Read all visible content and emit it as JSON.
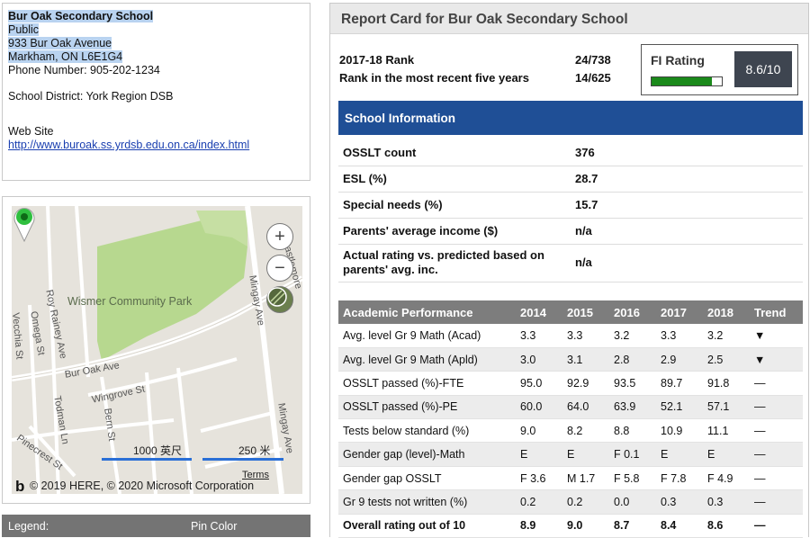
{
  "school": {
    "name": "Bur Oak Secondary School",
    "type": "Public",
    "street": "933 Bur Oak Avenue",
    "city_line": "Markham, ON L6E1G4",
    "phone_line": "Phone Number: 905-202-1234",
    "district_line": "School District: York Region DSB",
    "website_label": "Web Site",
    "website_url": "http://www.buroak.ss.yrdsb.edu.on.ca/index.html"
  },
  "map": {
    "park_label": "Wismer Community Park",
    "streets": [
      "Bur Oak Ave",
      "Wingrove St",
      "Roy Rainey Ave",
      "Omega St",
      "Vecchia St",
      "Todman Ln",
      "Bern St",
      "Pinecrest St",
      "Mingay Ave",
      "Mingay Ave",
      "Castlemore"
    ],
    "zoom_in": "+",
    "zoom_out": "−",
    "scale_feet": "1000 英尺",
    "scale_meters": "250 米",
    "terms": "Terms",
    "copyright": "© 2019 HERE, © 2020 Microsoft Corporation",
    "bing_mark": "b"
  },
  "legend": {
    "label": "Legend:",
    "pin_color": "Pin Color"
  },
  "report": {
    "title": "Report Card for Bur Oak Secondary School",
    "rank_label": "2017-18 Rank",
    "rank_value": "24/738",
    "rank5_label": "Rank in the most recent five years",
    "rank5_value": "14/625",
    "fi_label": "FI Rating",
    "fi_score": "8.6/10",
    "fi_fraction": 0.86,
    "school_info_header": "School Information",
    "school_info": [
      {
        "label": "OSSLT count",
        "value": "376"
      },
      {
        "label": "ESL (%)",
        "value": "28.7"
      },
      {
        "label": "Special needs (%)",
        "value": "15.7"
      },
      {
        "label": "Parents' average income ($)",
        "value": "n/a"
      },
      {
        "label": "Actual rating vs. predicted based on parents' avg. inc.",
        "value": "n/a"
      }
    ],
    "academic": {
      "headers": [
        "Academic Performance",
        "2014",
        "2015",
        "2016",
        "2017",
        "2018",
        "Trend"
      ],
      "rows": [
        [
          "Avg. level Gr 9 Math (Acad)",
          "3.3",
          "3.3",
          "3.2",
          "3.3",
          "3.2",
          "▼"
        ],
        [
          "Avg. level Gr 9 Math (Apld)",
          "3.0",
          "3.1",
          "2.8",
          "2.9",
          "2.5",
          "▼"
        ],
        [
          "OSSLT passed (%)-FTE",
          "95.0",
          "92.9",
          "93.5",
          "89.7",
          "91.8",
          "—"
        ],
        [
          "OSSLT passed (%)-PE",
          "60.0",
          "64.0",
          "63.9",
          "52.1",
          "57.1",
          "—"
        ],
        [
          "Tests below standard (%)",
          "9.0",
          "8.2",
          "8.8",
          "10.9",
          "11.1",
          "—"
        ],
        [
          "Gender gap (level)-Math",
          "E",
          "E",
          "F 0.1",
          "E",
          "E",
          "—"
        ],
        [
          "Gender gap OSSLT",
          "F 3.6",
          "M 1.7",
          "F 5.8",
          "F 7.8",
          "F 4.9",
          "—"
        ],
        [
          "Gr 9 tests not written (%)",
          "0.2",
          "0.2",
          "0.0",
          "0.3",
          "0.3",
          "—"
        ],
        [
          "Overall rating out of 10",
          "8.9",
          "9.0",
          "8.7",
          "8.4",
          "8.6",
          "—"
        ]
      ]
    }
  },
  "colors": {
    "header_blue": "#1f4f96",
    "fi_green": "#1b8a1b",
    "park_green": "#b7d88f",
    "pin_green": "#2fbf3f"
  }
}
